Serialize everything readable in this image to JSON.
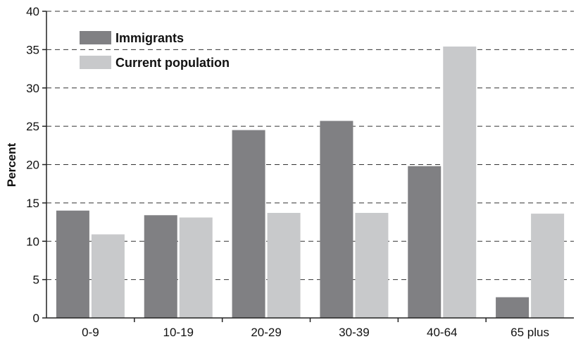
{
  "chart_data": {
    "type": "bar",
    "title": "",
    "xlabel": "",
    "ylabel": "Percent",
    "ylim": [
      0,
      40
    ],
    "yticks": [
      0,
      5,
      10,
      15,
      20,
      25,
      30,
      35,
      40
    ],
    "grid": "horizontal dashed",
    "legend_position": "top-left",
    "categories": [
      "0-9",
      "10-19",
      "20-29",
      "30-39",
      "40-64",
      "65 plus"
    ],
    "series": [
      {
        "name": "Immigrants",
        "color": "#808083",
        "values": [
          14.0,
          13.4,
          24.5,
          25.7,
          19.8,
          2.7
        ]
      },
      {
        "name": "Current population",
        "color": "#c8c9cb",
        "values": [
          10.9,
          13.1,
          13.7,
          13.7,
          35.4,
          13.6
        ]
      }
    ]
  }
}
